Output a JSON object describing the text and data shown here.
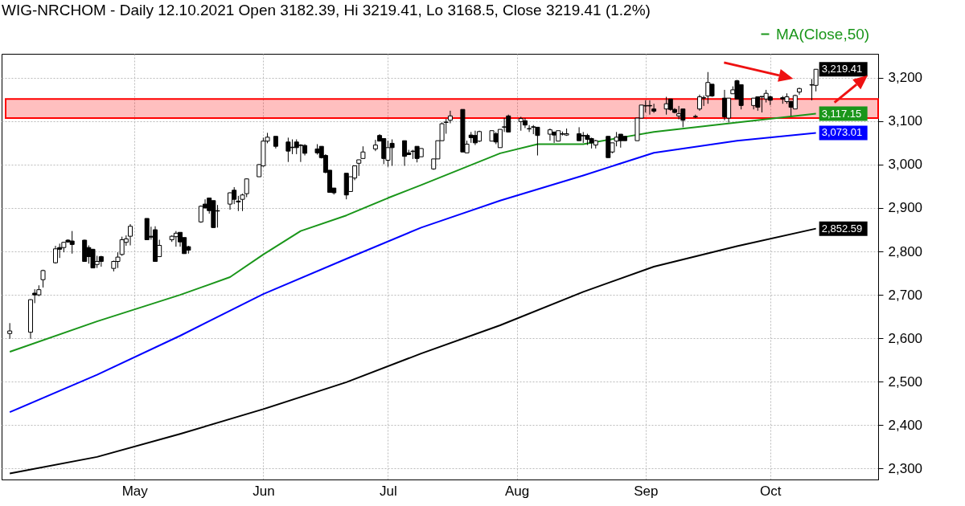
{
  "chart_data": {
    "type": "candlestick",
    "title": "WIG-NRCHOM - Daily 12.10.2021 Open 3182.39, Hi 3219.41, Lo 3168.5, Close 3219.41 (1.2%)",
    "x": [
      "2021-04-01",
      "2021-04-06",
      "2021-04-07",
      "2021-04-08",
      "2021-04-09",
      "2021-04-12",
      "2021-04-13",
      "2021-04-14",
      "2021-04-15",
      "2021-04-16",
      "2021-04-19",
      "2021-04-20",
      "2021-04-21",
      "2021-04-22",
      "2021-04-23",
      "2021-04-26",
      "2021-04-27",
      "2021-04-28",
      "2021-04-29",
      "2021-04-30",
      "2021-05-04",
      "2021-05-05",
      "2021-05-06",
      "2021-05-07",
      "2021-05-10",
      "2021-05-11",
      "2021-05-12",
      "2021-05-13",
      "2021-05-14",
      "2021-05-17",
      "2021-05-18",
      "2021-05-19",
      "2021-05-20",
      "2021-05-21",
      "2021-05-24",
      "2021-05-25",
      "2021-05-26",
      "2021-05-27",
      "2021-05-28",
      "2021-05-31",
      "2021-06-01",
      "2021-06-02",
      "2021-06-04",
      "2021-06-07",
      "2021-06-08",
      "2021-06-09",
      "2021-06-10",
      "2021-06-11",
      "2021-06-14",
      "2021-06-15",
      "2021-06-16",
      "2021-06-17",
      "2021-06-18",
      "2021-06-21",
      "2021-06-22",
      "2021-06-23",
      "2021-06-24",
      "2021-06-25",
      "2021-06-28",
      "2021-06-29",
      "2021-06-30",
      "2021-07-01",
      "2021-07-02",
      "2021-07-05",
      "2021-07-06",
      "2021-07-07",
      "2021-07-08",
      "2021-07-09",
      "2021-07-12",
      "2021-07-13",
      "2021-07-14",
      "2021-07-15",
      "2021-07-16",
      "2021-07-19",
      "2021-07-20",
      "2021-07-21",
      "2021-07-22",
      "2021-07-23",
      "2021-07-26",
      "2021-07-27",
      "2021-07-28",
      "2021-07-29",
      "2021-07-30",
      "2021-08-02",
      "2021-08-03",
      "2021-08-04",
      "2021-08-05",
      "2021-08-06",
      "2021-08-09",
      "2021-08-10",
      "2021-08-11",
      "2021-08-12",
      "2021-08-13",
      "2021-08-16",
      "2021-08-17",
      "2021-08-18",
      "2021-08-19",
      "2021-08-20",
      "2021-08-23",
      "2021-08-24",
      "2021-08-25",
      "2021-08-26",
      "2021-08-27",
      "2021-08-30",
      "2021-08-31",
      "2021-09-01",
      "2021-09-02",
      "2021-09-03",
      "2021-09-06",
      "2021-09-07",
      "2021-09-08",
      "2021-09-09",
      "2021-09-10",
      "2021-09-13",
      "2021-09-14",
      "2021-09-15",
      "2021-09-16",
      "2021-09-17",
      "2021-09-20",
      "2021-09-21",
      "2021-09-22",
      "2021-09-23",
      "2021-09-24",
      "2021-09-27",
      "2021-09-28",
      "2021-09-29",
      "2021-09-30",
      "2021-10-01",
      "2021-10-04",
      "2021-10-05",
      "2021-10-06",
      "2021-10-07",
      "2021-10-08",
      "2021-10-11",
      "2021-10-12"
    ],
    "ohlc": [
      [
        2611,
        2635,
        2599,
        2617
      ],
      [
        2614,
        2690,
        2599,
        2689
      ],
      [
        2704,
        2713,
        2681,
        2700
      ],
      [
        2700,
        2722,
        2697,
        2712
      ],
      [
        2735,
        2758,
        2717,
        2756
      ],
      [
        2774,
        2813,
        2772,
        2806
      ],
      [
        2809,
        2818,
        2785,
        2805
      ],
      [
        2809,
        2822,
        2798,
        2821
      ],
      [
        2826,
        2828,
        2820,
        2822
      ],
      [
        2824,
        2847,
        2795,
        2816
      ],
      [
        2826,
        2827,
        2777,
        2777
      ],
      [
        2809,
        2814,
        2772,
        2788
      ],
      [
        2805,
        2806,
        2762,
        2762
      ],
      [
        2770,
        2790,
        2762,
        2777
      ],
      [
        2788,
        2790,
        2765,
        2777
      ],
      [
        2761,
        2779,
        2754,
        2777
      ],
      [
        2777,
        2798,
        2762,
        2787
      ],
      [
        2793,
        2834,
        2790,
        2827
      ],
      [
        2821,
        2837,
        2813,
        2829
      ],
      [
        2835,
        2863,
        2814,
        2858
      ],
      [
        2876,
        2876,
        2827,
        2827
      ],
      [
        2835,
        2857,
        2827,
        2833
      ],
      [
        2850,
        2858,
        2777,
        2777
      ],
      [
        2788,
        2827,
        2788,
        2814
      ],
      [
        2827,
        2837,
        2822,
        2835
      ],
      [
        2834,
        2847,
        2811,
        2842
      ],
      [
        2844,
        2844,
        2811,
        2822
      ],
      [
        2832,
        2832,
        2795,
        2795
      ],
      [
        2811,
        2813,
        2795,
        2803
      ],
      [
        2868,
        2906,
        2866,
        2904
      ],
      [
        2909,
        2920,
        2900,
        2900
      ],
      [
        2923,
        2923,
        2887,
        2894
      ],
      [
        2917,
        2917,
        2855,
        2855
      ],
      [
        2894,
        2907,
        2855,
        2893
      ],
      [
        2909,
        2936,
        2896,
        2935
      ],
      [
        2941,
        2948,
        2909,
        2920
      ],
      [
        2916,
        2928,
        2893,
        2914
      ],
      [
        2920,
        2933,
        2893,
        2930
      ],
      [
        2933,
        2968,
        2925,
        2967
      ],
      [
        2972,
        3001,
        2972,
        3000
      ],
      [
        2997,
        3062,
        2995,
        3054
      ],
      [
        3054,
        3073,
        3049,
        3063
      ],
      [
        3065,
        3065,
        3037,
        3042
      ],
      [
        3052,
        3062,
        3006,
        3031
      ],
      [
        3040,
        3058,
        3024,
        3039
      ],
      [
        3052,
        3058,
        3024,
        3039
      ],
      [
        3045,
        3047,
        3006,
        3044
      ],
      [
        3044,
        3047,
        3021,
        3026
      ],
      [
        3036,
        3047,
        3023,
        3027
      ],
      [
        3042,
        3042,
        3014,
        3016
      ],
      [
        3021,
        3024,
        2980,
        2982
      ],
      [
        2987,
        2987,
        2936,
        2936
      ],
      [
        2946,
        2946,
        2931,
        2935
      ],
      [
        2980,
        2980,
        2920,
        2930
      ],
      [
        2938,
        2972,
        2938,
        2972
      ],
      [
        2969,
        2997,
        2964,
        2997
      ],
      [
        3003,
        3011,
        2974,
        3011
      ],
      [
        3014,
        3042,
        3014,
        3029
      ],
      [
        3036,
        3057,
        3031,
        3045
      ],
      [
        3067,
        3070,
        3054,
        3054
      ],
      [
        3060,
        3060,
        3001,
        3014
      ],
      [
        3010,
        3055,
        2995,
        3039
      ],
      [
        3049,
        3058,
        2997,
        3039
      ],
      [
        3055,
        3055,
        2997,
        3019
      ],
      [
        3027,
        3034,
        3023,
        3023
      ],
      [
        3031,
        3034,
        3013,
        3030
      ],
      [
        3042,
        3042,
        3005,
        3014
      ],
      [
        3018,
        3037,
        3018,
        3037
      ],
      [
        2990,
        3013,
        2988,
        3013
      ],
      [
        3013,
        3055,
        3013,
        3055
      ],
      [
        3055,
        3097,
        3055,
        3094
      ],
      [
        3097,
        3105,
        3071,
        3098
      ],
      [
        3102,
        3124,
        3095,
        3112
      ],
      [
        3127,
        3127,
        3029,
        3029
      ],
      [
        3027,
        3055,
        3027,
        3047
      ],
      [
        3068,
        3075,
        3050,
        3062
      ],
      [
        3067,
        3078,
        3045,
        3050
      ],
      [
        3054,
        3078,
        3052,
        3076
      ],
      [
        3054,
        3078,
        3054,
        3078
      ],
      [
        3071,
        3075,
        3047,
        3052
      ],
      [
        3039,
        3081,
        3039,
        3081
      ],
      [
        3086,
        3107,
        3075,
        3087
      ],
      [
        3112,
        3115,
        3075,
        3075
      ],
      [
        3099,
        3110,
        3078,
        3106
      ],
      [
        3101,
        3107,
        3084,
        3091
      ],
      [
        3083,
        3091,
        3075,
        3082
      ],
      [
        3087,
        3091,
        3070,
        3086
      ],
      [
        3086,
        3086,
        3021,
        3067
      ],
      [
        3070,
        3083,
        3055,
        3080
      ],
      [
        3075,
        3075,
        3050,
        3068
      ],
      [
        3054,
        3078,
        3054,
        3078
      ],
      [
        3070,
        3076,
        3067,
        3071
      ],
      [
        3068,
        3083,
        3066,
        3071
      ],
      [
        3071,
        3086,
        3055,
        3055
      ],
      [
        3067,
        3075,
        3050,
        3066
      ],
      [
        3067,
        3071,
        3045,
        3058
      ],
      [
        3060,
        3062,
        3037,
        3050
      ],
      [
        3045,
        3057,
        3037,
        3055
      ],
      [
        3065,
        3065,
        3016,
        3016
      ],
      [
        3029,
        3050,
        3026,
        3050
      ],
      [
        3054,
        3075,
        3042,
        3063
      ],
      [
        3070,
        3070,
        3039,
        3055
      ],
      [
        3065,
        3065,
        3055,
        3055
      ],
      [
        3055,
        3107,
        3055,
        3107
      ],
      [
        3107,
        3137,
        3107,
        3137
      ],
      [
        3135,
        3148,
        3120,
        3136
      ],
      [
        3136,
        3148,
        3115,
        3135
      ],
      [
        3128,
        3140,
        3119,
        3123
      ],
      [
        3128,
        3156,
        3115,
        3140
      ],
      [
        3151,
        3151,
        3124,
        3127
      ],
      [
        3127,
        3130,
        3118,
        3120
      ],
      [
        3112,
        3135,
        3104,
        3117
      ],
      [
        3128,
        3128,
        3086,
        3102
      ],
      [
        3110,
        3115,
        3107,
        3111
      ],
      [
        3128,
        3161,
        3124,
        3156
      ],
      [
        3153,
        3159,
        3135,
        3154
      ],
      [
        3158,
        3213,
        3140,
        3189
      ],
      [
        3185,
        3185,
        3156,
        3158
      ],
      [
        3153,
        3172,
        3102,
        3110
      ],
      [
        3107,
        3153,
        3097,
        3153
      ],
      [
        3163,
        3180,
        3163,
        3172
      ],
      [
        3193,
        3195,
        3151,
        3151
      ],
      [
        3184,
        3184,
        3127,
        3136
      ],
      [
        3136,
        3153,
        3127,
        3153
      ],
      [
        3156,
        3156,
        3124,
        3132
      ],
      [
        3156,
        3157,
        3120,
        3157
      ],
      [
        3151,
        3172,
        3143,
        3164
      ],
      [
        3156,
        3159,
        3137,
        3148
      ],
      [
        3154,
        3158,
        3140,
        3151
      ],
      [
        3145,
        3164,
        3140,
        3156
      ],
      [
        3145,
        3147,
        3112,
        3132
      ],
      [
        3128,
        3161,
        3128,
        3159
      ],
      [
        3167,
        3177,
        3161,
        3175
      ],
      [
        3183,
        3197,
        3148,
        3184
      ],
      [
        3182.39,
        3219.41,
        3168.5,
        3219.41
      ]
    ],
    "series": [
      {
        "name": "MA(Close,50)",
        "type": "line",
        "color": "#1a961a",
        "x": [
          "2021-04-01",
          "2021-04-22",
          "2021-05-12",
          "2021-05-24",
          "2021-06-01",
          "2021-06-10",
          "2021-06-21",
          "2021-07-01",
          "2021-07-09",
          "2021-07-28",
          "2021-08-06",
          "2021-08-17",
          "2021-08-26",
          "2021-09-03",
          "2021-09-23",
          "2021-10-12"
        ],
        "values": [
          2569,
          2639,
          2700,
          2741,
          2793,
          2847,
          2883,
          2923,
          2953,
          3026,
          3047,
          3047,
          3062,
          3075,
          3097,
          3117.15
        ]
      },
      {
        "type": "line",
        "color": "#0000ff",
        "x": [
          "2021-04-01",
          "2021-04-22",
          "2021-05-12",
          "2021-06-01",
          "2021-06-21",
          "2021-07-09",
          "2021-07-28",
          "2021-08-17",
          "2021-09-03",
          "2021-09-23",
          "2021-10-12"
        ],
        "values": [
          2430,
          2516,
          2606,
          2702,
          2783,
          2855,
          2917,
          2975,
          3027,
          3055,
          3073.01
        ]
      },
      {
        "type": "line",
        "color": "#000000",
        "x": [
          "2021-04-01",
          "2021-04-22",
          "2021-05-12",
          "2021-06-01",
          "2021-06-21",
          "2021-07-09",
          "2021-07-28",
          "2021-08-17",
          "2021-09-03",
          "2021-09-23",
          "2021-10-12"
        ],
        "values": [
          2289,
          2327,
          2380,
          2437,
          2499,
          2565,
          2630,
          2707,
          2765,
          2812,
          2852.59
        ]
      }
    ],
    "xlim": [
      "2021-03-31",
      "2021-10-26"
    ],
    "ylim": [
      2275,
      3255
    ],
    "xticks": [
      {
        "value": "2021-05-01",
        "label": "May"
      },
      {
        "value": "2021-06-01",
        "label": "Jun"
      },
      {
        "value": "2021-07-01",
        "label": "Jul"
      },
      {
        "value": "2021-08-01",
        "label": "Aug"
      },
      {
        "value": "2021-09-01",
        "label": "Sep"
      },
      {
        "value": "2021-10-01",
        "label": "Oct"
      }
    ],
    "yticks": [
      {
        "value": 2300,
        "label": "2,300"
      },
      {
        "value": 2400,
        "label": "2,400"
      },
      {
        "value": 2500,
        "label": "2,500"
      },
      {
        "value": 2600,
        "label": "2,600"
      },
      {
        "value": 2700,
        "label": "2,700"
      },
      {
        "value": 2800,
        "label": "2,800"
      },
      {
        "value": 2900,
        "label": "2,900"
      },
      {
        "value": 3000,
        "label": "3,000"
      },
      {
        "value": 3100,
        "label": "3,100"
      },
      {
        "value": 3200,
        "label": "3,200"
      }
    ],
    "grid": true,
    "legend": "top right",
    "bands": [
      {
        "axis": "y",
        "from": 3107,
        "to": 3151,
        "color": "#ff0000"
      }
    ],
    "annotations": [
      {
        "text": "3,219.41",
        "x": "2021-10-12",
        "y": 3219.41
      },
      {
        "text": "3,117.15",
        "x": "2021-10-12",
        "y": 3117.15
      },
      {
        "text": "3,073.01",
        "x": "2021-10-12",
        "y": 3073.01
      },
      {
        "text": "2,852.59",
        "x": "2021-10-12",
        "y": 2852.59
      }
    ]
  }
}
